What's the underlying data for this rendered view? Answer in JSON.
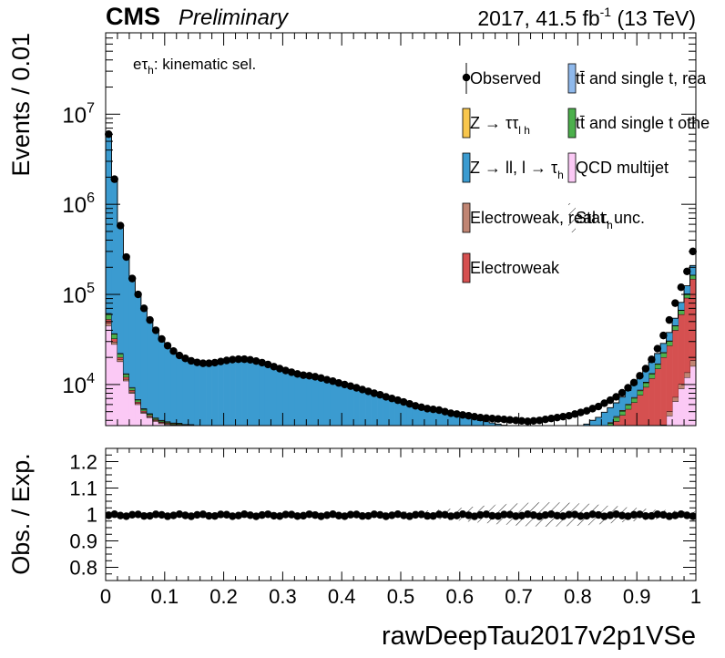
{
  "header": {
    "experiment": "CMS",
    "status": "Preliminary",
    "lumi_prefix": "2017, 41.5 fb",
    "lumi_exp": "-1",
    "lumi_suffix": " (13 TeV)"
  },
  "upper": {
    "ylabel": "Events / 0.01",
    "ylog": true,
    "ylim": [
      3500,
      80000000
    ],
    "yticks": [
      {
        "value": 10000,
        "base": "10",
        "exp": "4"
      },
      {
        "value": 100000,
        "base": "10",
        "exp": "5"
      },
      {
        "value": 1000000,
        "base": "10",
        "exp": "6"
      },
      {
        "value": 10000000,
        "base": "10",
        "exp": "7"
      }
    ],
    "annotation": {
      "main": "eτ",
      "sub": "h",
      "rest": ": kinematic sel."
    }
  },
  "legend": [
    {
      "label": "Observed",
      "color": "#000000",
      "kind": "point",
      "sub": ""
    },
    {
      "label": "tt̄ and single t, rea",
      "color": "#8fb9ec",
      "kind": "box",
      "sub": ""
    },
    {
      "label": "Z → ττ",
      "color": "#f8c64c",
      "kind": "box",
      "sub": "l  h"
    },
    {
      "label": "tt̄ and single t othe",
      "color": "#4cb04c",
      "kind": "box",
      "sub": ""
    },
    {
      "label": "Z → ll, l → τ",
      "color": "#3b9bd0",
      "kind": "box",
      "sub": "h"
    },
    {
      "label": "QCD multijet",
      "color": "#fbc9f5",
      "kind": "box",
      "sub": ""
    },
    {
      "label": "Electroweak, real τ",
      "color": "#c08573",
      "kind": "box",
      "sub": "h"
    },
    {
      "label": "Stat. unc.",
      "color": "#000000",
      "kind": "hatch",
      "sub": ""
    },
    {
      "label": "Electroweak",
      "color": "#d55050",
      "kind": "box",
      "sub": ""
    }
  ],
  "lower": {
    "ylabel": "Obs. / Exp.",
    "ylim": [
      0.75,
      1.25
    ],
    "yticks": [
      "0.8",
      "0.9",
      "1",
      "1.1",
      "1.2"
    ]
  },
  "xaxis": {
    "label": "rawDeepTau2017v2p1VSe",
    "xlim": [
      0,
      1
    ],
    "ticks": [
      "0",
      "0.1",
      "0.2",
      "0.3",
      "0.4",
      "0.5",
      "0.6",
      "0.7",
      "0.8",
      "0.9",
      "1"
    ]
  },
  "chart_data": {
    "type": "bar",
    "subtype": "stacked histogram (log y) with data points and ratio panel",
    "bin_width": 0.01,
    "x_centers_start": 0.005,
    "observed": [
      6000000,
      1900000,
      580000,
      260000,
      150000,
      100000,
      70000,
      52000,
      40000,
      32000,
      27000,
      23500,
      21000,
      19500,
      18300,
      17600,
      17200,
      17200,
      17500,
      18000,
      18500,
      18900,
      19100,
      19100,
      18800,
      18200,
      17500,
      16700,
      15800,
      15000,
      14300,
      13700,
      13100,
      12700,
      12500,
      12200,
      11800,
      11300,
      10900,
      10400,
      10000,
      9600,
      9200,
      8800,
      8400,
      8000,
      7700,
      7300,
      7000,
      6700,
      6400,
      6100,
      5800,
      5600,
      5400,
      5300,
      5200,
      5000,
      4800,
      4700,
      4600,
      4500,
      4400,
      4300,
      4250,
      4200,
      4150,
      4100,
      4050,
      4000,
      3950,
      3900,
      3950,
      4000,
      4100,
      4200,
      4300,
      4400,
      4500,
      4700,
      4900,
      5100,
      5400,
      5700,
      6200,
      6700,
      7300,
      8100,
      9200,
      10500,
      12500,
      15000,
      19000,
      25000,
      35000,
      52000,
      80000,
      120000,
      180000,
      300000
    ],
    "series": [
      {
        "name": "QCD multijet",
        "color": "#fbc9f5",
        "values": [
          45000,
          28000,
          18000,
          11000,
          8000,
          6000,
          4800,
          4300,
          3900,
          3700,
          3600,
          3500,
          3500,
          3400,
          3400,
          3300,
          3200,
          3100,
          3000,
          2900,
          2800,
          2700,
          2600,
          2500,
          2400,
          2300,
          2200,
          2100,
          2000,
          1900,
          1800,
          1700,
          1600,
          1500,
          1450,
          1400,
          1350,
          1300,
          1250,
          1200,
          1150,
          1100,
          1050,
          1000,
          950,
          900,
          870,
          840,
          810,
          780,
          750,
          720,
          700,
          680,
          660,
          640,
          620,
          600,
          580,
          560,
          550,
          540,
          530,
          520,
          510,
          500,
          495,
          490,
          485,
          480,
          480,
          480,
          490,
          500,
          510,
          520,
          540,
          560,
          580,
          600,
          620,
          650,
          680,
          710,
          740,
          780,
          820,
          870,
          930,
          1000,
          1100,
          1300,
          1600,
          2200,
          3200,
          4500,
          6500,
          9000,
          12000,
          16000
        ]
      },
      {
        "name": "Electroweak, real τh",
        "color": "#c08573",
        "values": [
          3000,
          1800,
          900,
          500,
          300,
          200,
          150,
          120,
          100,
          90,
          80,
          75,
          70,
          65,
          60,
          58,
          56,
          55,
          55,
          56,
          58,
          60,
          62,
          62,
          61,
          59,
          57,
          55,
          52,
          50,
          48,
          46,
          44,
          42,
          41,
          40,
          39,
          37,
          36,
          35,
          34,
          33,
          32,
          31,
          30,
          29,
          28,
          27,
          26,
          26,
          25,
          25,
          25,
          25,
          25,
          25,
          25,
          25,
          25,
          25,
          25,
          25,
          26,
          26,
          27,
          27,
          28,
          28,
          29,
          30,
          31,
          32,
          33,
          34,
          36,
          38,
          40,
          42,
          45,
          48,
          52,
          56,
          60,
          66,
          72,
          80,
          90,
          100,
          115,
          130,
          150,
          180,
          220,
          280,
          380,
          520,
          750,
          1100,
          1600,
          2500
        ]
      },
      {
        "name": "Electroweak",
        "color": "#d55050",
        "values": [
          5000,
          2500,
          1200,
          600,
          350,
          220,
          150,
          110,
          90,
          75,
          65,
          58,
          52,
          48,
          45,
          43,
          41,
          40,
          40,
          41,
          42,
          43,
          44,
          44,
          43,
          42,
          41,
          40,
          39,
          38,
          37,
          36,
          35,
          34,
          33,
          33,
          32,
          32,
          31,
          31,
          30,
          30,
          30,
          30,
          30,
          30,
          30,
          30,
          31,
          31,
          32,
          33,
          34,
          35,
          36,
          38,
          40,
          42,
          45,
          48,
          52,
          56,
          60,
          66,
          72,
          80,
          90,
          100,
          115,
          130,
          150,
          175,
          200,
          240,
          290,
          350,
          430,
          530,
          660,
          820,
          1000,
          1200,
          1450,
          1750,
          2100,
          2500,
          3000,
          3600,
          4300,
          5200,
          6400,
          7900,
          9900,
          12500,
          16500,
          22000,
          33000,
          50000,
          78000,
          130000
        ]
      },
      {
        "name": "tt̄ and single t othe",
        "color": "#4cb04c",
        "values": [
          8000,
          4000,
          1800,
          900,
          500,
          320,
          220,
          160,
          120,
          100,
          85,
          75,
          68,
          62,
          58,
          55,
          53,
          51,
          50,
          50,
          50,
          50,
          49,
          48,
          47,
          46,
          45,
          44,
          43,
          42,
          41,
          40,
          39,
          38,
          37,
          36,
          35,
          34,
          33,
          32,
          31,
          30,
          29,
          28,
          27,
          26,
          26,
          25,
          25,
          24,
          24,
          24,
          24,
          24,
          24,
          25,
          25,
          26,
          26,
          27,
          28,
          29,
          30,
          31,
          33,
          35,
          37,
          40,
          43,
          47,
          51,
          56,
          62,
          69,
          77,
          86,
          97,
          110,
          125,
          143,
          165,
          190,
          220,
          260,
          305,
          360,
          430,
          510,
          610,
          740,
          900,
          1100,
          1400,
          1800,
          2400,
          3200,
          4500,
          6500,
          9500,
          15000
        ]
      },
      {
        "name": "tt̄ and single t, rea",
        "color": "#8fb9ec",
        "values": [
          600,
          400,
          250,
          160,
          110,
          80,
          60,
          48,
          40,
          35,
          31,
          28,
          26,
          24,
          23,
          22,
          21,
          20,
          20,
          20,
          20,
          20,
          20,
          20,
          19,
          19,
          18,
          18,
          17,
          17,
          16,
          16,
          15,
          15,
          15,
          14,
          14,
          14,
          13,
          13,
          13,
          12,
          12,
          12,
          12,
          11,
          11,
          11,
          11,
          11,
          11,
          11,
          11,
          11,
          11,
          11,
          11,
          11,
          11,
          11,
          11,
          11,
          11,
          12,
          12,
          12,
          12,
          13,
          13,
          14,
          14,
          15,
          15,
          16,
          17,
          18,
          19,
          20,
          22,
          24,
          26,
          28,
          31,
          34,
          38,
          42,
          47,
          53,
          60,
          68,
          78,
          90,
          105,
          125,
          150,
          185,
          230,
          300,
          400,
          600
        ]
      },
      {
        "name": "Z → ττ",
        "color": "#f8c64c",
        "values": [
          300,
          200,
          130,
          90,
          70,
          55,
          45,
          40,
          36,
          34,
          33,
          32,
          32,
          32,
          33,
          34,
          35,
          36,
          37,
          38,
          38,
          38,
          37,
          36,
          35,
          34,
          33,
          31,
          30,
          28,
          27,
          26,
          25,
          24,
          23,
          22,
          21,
          20,
          19,
          18,
          17,
          16,
          15,
          15,
          14,
          14,
          13,
          13,
          12,
          12,
          12,
          11,
          11,
          11,
          11,
          11,
          11,
          11,
          11,
          11,
          11,
          11,
          12,
          12,
          12,
          13,
          13,
          14,
          14,
          15,
          16,
          17,
          18,
          19,
          20,
          21,
          23,
          25,
          27,
          29,
          32,
          35,
          39,
          43,
          48,
          54,
          61,
          70,
          80,
          92,
          107,
          125,
          148,
          177,
          215,
          265,
          330,
          420,
          550,
          750
        ]
      },
      {
        "name": "Z → ll, l → τh",
        "color": "#3b9bd0",
        "values": [
          5938100,
          1863100,
          557720,
          246750,
          140670,
          93065,
          64575,
          47222,
          35714,
          27966,
          23106,
          19732,
          17252,
          15869,
          14781,
          14186,
          13835,
          13918,
          14338,
          14895,
          15492,
          15989,
          16288,
          16370,
          16242,
          15735,
          15120,
          14402,
          13585,
          12877,
          12230,
          11686,
          11142,
          10829,
          10732,
          10515,
          10181,
          9767,
          9467,
          9039,
          8725,
          8399,
          8063,
          7721,
          7391,
          7046,
          6767,
          6430,
          6163,
          5894,
          5621,
          5346,
          5065,
          4864,
          4669,
          4561,
          4468,
          4271,
          4069,
          3938,
          3787,
          3626,
          3480,
          3323,
          3200,
          3084,
          2963,
          2849,
          2710,
          2569,
          2423,
          2270,
          2202,
          2123,
          2070,
          1987,
          1880,
          1760,
          1626,
          1590,
          1553,
          1484,
          1521,
          1462,
          1620,
          1715,
          1816,
          2054,
          2472,
          2736,
          3306,
          3745,
          4318,
          5020,
          5735,
          7170,
          9040,
          14170,
          22790,
          44650
        ]
      }
    ],
    "ratio": {
      "y": 1.0,
      "ylim": [
        0.75,
        1.25
      ],
      "stat_unc_band": "hatched, narrow near 0, widening to about ±0.05 around x=0.6–0.9"
    },
    "legend_position": "top-right",
    "grid": false
  }
}
